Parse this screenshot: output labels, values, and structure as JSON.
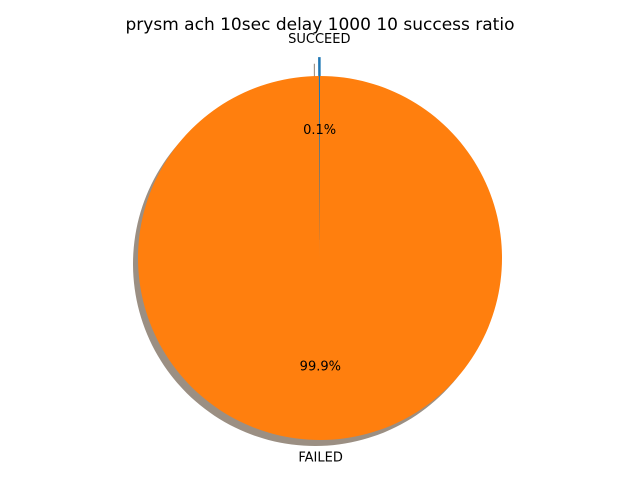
{
  "chart_data": {
    "type": "pie",
    "title": "prysm ach 10sec delay 1000 10 success ratio",
    "slices": [
      {
        "label": "SUCCEED",
        "value": 0.1,
        "pct_label": "0.1%",
        "color": "#1f77b4",
        "explode": true
      },
      {
        "label": "FAILED",
        "value": 99.9,
        "pct_label": "99.9%",
        "color": "#ff7f0e",
        "explode": false
      }
    ],
    "start_angle_deg": 90,
    "direction": "counterclockwise",
    "shadow": true,
    "shadow_color": "#9b8f83"
  }
}
